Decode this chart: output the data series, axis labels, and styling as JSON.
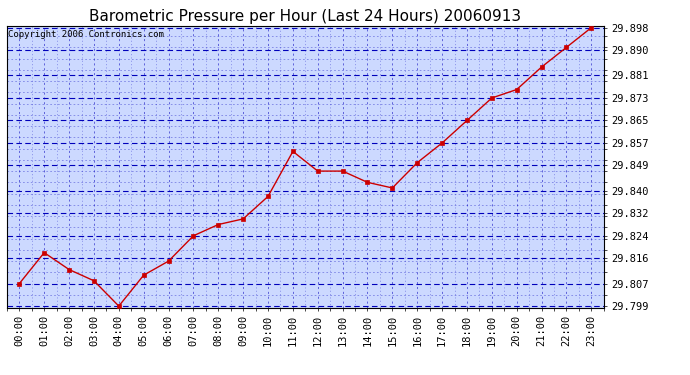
{
  "title": "Barometric Pressure per Hour (Last 24 Hours) 20060913",
  "copyright": "Copyright 2006 Contronics.com",
  "x_labels": [
    "00:00",
    "01:00",
    "02:00",
    "03:00",
    "04:00",
    "05:00",
    "06:00",
    "07:00",
    "08:00",
    "09:00",
    "10:00",
    "11:00",
    "12:00",
    "13:00",
    "14:00",
    "15:00",
    "16:00",
    "17:00",
    "18:00",
    "19:00",
    "20:00",
    "21:00",
    "22:00",
    "23:00"
  ],
  "y_values": [
    29.807,
    29.818,
    29.812,
    29.808,
    29.799,
    29.81,
    29.815,
    29.824,
    29.828,
    29.83,
    29.838,
    29.854,
    29.847,
    29.847,
    29.843,
    29.841,
    29.85,
    29.857,
    29.865,
    29.873,
    29.876,
    29.884,
    29.891,
    29.898
  ],
  "y_min": 29.799,
  "y_max": 29.898,
  "y_ticks": [
    29.799,
    29.807,
    29.816,
    29.824,
    29.832,
    29.84,
    29.849,
    29.857,
    29.865,
    29.873,
    29.881,
    29.89,
    29.898
  ],
  "line_color": "#cc0000",
  "marker_color": "#cc0000",
  "plot_bg_color": "#ccd9ff",
  "grid_color_major": "#0000bb",
  "grid_color_minor": "#3333cc",
  "title_fontsize": 11,
  "copyright_fontsize": 6.5,
  "tick_fontsize": 7.5,
  "fig_width": 6.9,
  "fig_height": 3.75
}
